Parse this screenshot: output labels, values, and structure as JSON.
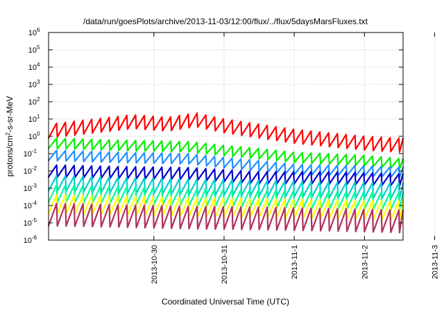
{
  "chart_data": {
    "type": "line",
    "title": "/data/run/goesPlots/archive/2013-11-03/12:00/flux/../flux/5daysMarsFluxes.txt",
    "xlabel": "Coordinated Universal Time (UTC)",
    "ylabel_base": "protons/cm",
    "ylabel_sup": "2",
    "ylabel_rest": "-s-sr-MeV",
    "y_scale": "log",
    "ylim_exp": [
      -6,
      6
    ],
    "y_tick_exponents": [
      -6,
      -5,
      -4,
      -3,
      -2,
      -1,
      0,
      1,
      2,
      3,
      4,
      5,
      6
    ],
    "xlim_days": [
      -1.5,
      3.55
    ],
    "x_ticks": [
      {
        "label": "2013-10-30",
        "day": 0
      },
      {
        "label": "2013-10-31",
        "day": 1
      },
      {
        "label": "2013-11-1",
        "day": 2
      },
      {
        "label": "2013-11-2",
        "day": 3
      },
      {
        "label": "2013-11-3",
        "day": 4
      }
    ],
    "grid": true,
    "legend": "none",
    "series": [
      {
        "color": "#ff0000",
        "sawtooth": 0.8,
        "x": [
          -1.5,
          -0.3,
          0.2,
          0.6,
          1.0,
          1.5,
          2.0,
          3.0,
          3.55
        ],
        "y": [
          2.0,
          7.0,
          5.0,
          9.0,
          4.0,
          2.0,
          1.0,
          0.4,
          0.3
        ]
      },
      {
        "color": "#00ee00",
        "sawtooth": 0.6,
        "x": [
          -1.5,
          -0.5,
          0.5,
          1.0,
          1.5,
          2.0,
          3.0,
          3.55
        ],
        "y": [
          0.4,
          0.3,
          0.25,
          0.15,
          0.1,
          0.06,
          0.04,
          0.025
        ]
      },
      {
        "color": "#1e90ff",
        "sawtooth": 0.6,
        "x": [
          -1.5,
          -0.5,
          0.5,
          1.0,
          1.5,
          2.0,
          3.0,
          3.55
        ],
        "y": [
          0.08,
          0.06,
          0.05,
          0.03,
          0.02,
          0.012,
          0.01,
          0.008
        ]
      },
      {
        "color": "#0000cd",
        "sawtooth": 0.7,
        "x": [
          -1.5,
          -0.5,
          0.5,
          1.5,
          2.5,
          3.55
        ],
        "y": [
          0.01,
          0.008,
          0.007,
          0.004,
          0.004,
          0.003
        ]
      },
      {
        "color": "#00ced1",
        "sawtooth": 0.9,
        "x": [
          -1.5,
          -0.5,
          0.5,
          1.5,
          2.5,
          3.55
        ],
        "y": [
          0.002,
          0.0015,
          0.0012,
          0.001,
          0.0008,
          0.0007
        ]
      },
      {
        "color": "#00fa9a",
        "sawtooth": 1.0,
        "x": [
          -1.5,
          -0.5,
          0.5,
          1.5,
          2.5,
          3.55
        ],
        "y": [
          0.0005,
          0.0004,
          0.0003,
          0.00025,
          0.0002,
          0.00018
        ]
      },
      {
        "color": "#ffff00",
        "sawtooth": 1.1,
        "x": [
          -1.5,
          -0.5,
          0.5,
          1.5,
          2.5,
          3.55
        ],
        "y": [
          0.00012,
          0.0001,
          8e-05,
          7e-05,
          6e-05,
          5e-05
        ]
      },
      {
        "color": "#b03060",
        "sawtooth": 1.3,
        "x": [
          -1.5,
          -0.5,
          0.5,
          1.5,
          2.5,
          3.55
        ],
        "y": [
          3e-05,
          2.5e-05,
          2e-05,
          1.8e-05,
          1.5e-05,
          1.2e-05
        ]
      }
    ]
  }
}
